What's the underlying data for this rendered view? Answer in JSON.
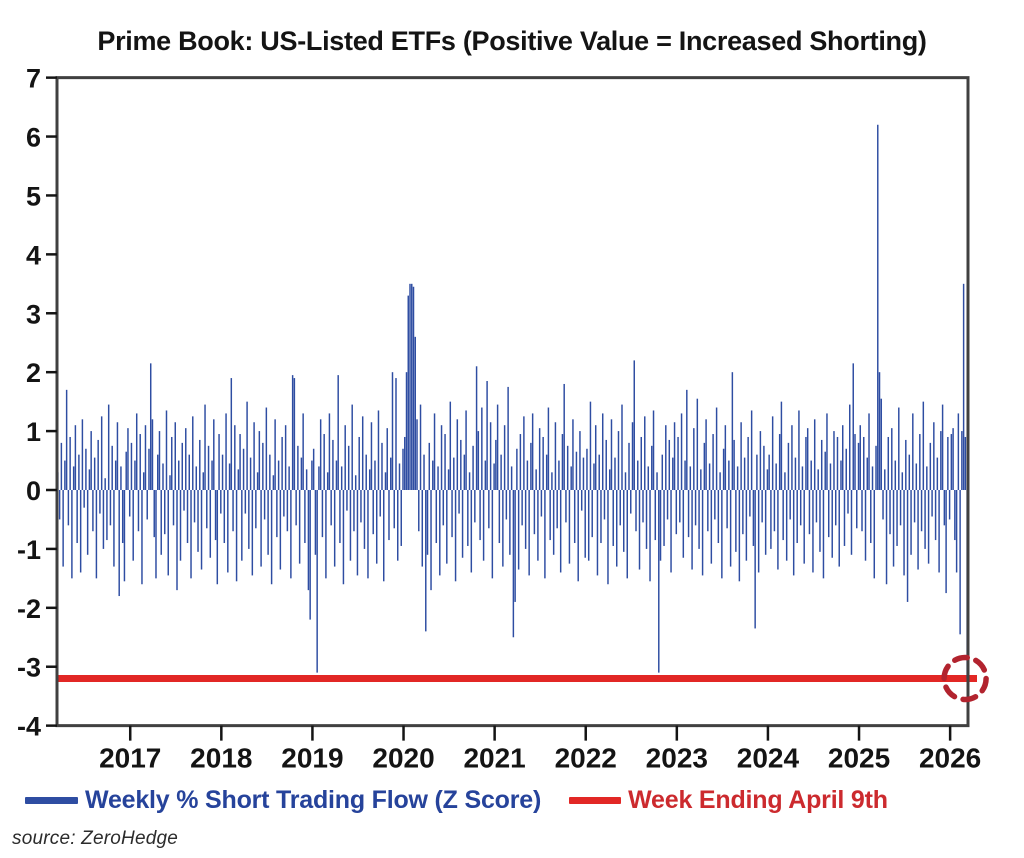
{
  "title": "Prime Book: US-Listed ETFs (Positive Value = Increased Shorting)",
  "source": "source: ZeroHedge",
  "legend": {
    "series1": "Weekly % Short Trading Flow (Z Score)",
    "series2": "Week Ending April 9th"
  },
  "colors": {
    "bars": "#2e4da2",
    "ref_line": "#e22725",
    "circle": "#b2232e",
    "legend_blue_text": "#26439b",
    "legend_red_text": "#cc2a2e",
    "axis": "#404040",
    "tick_text": "#141414",
    "title_text": "#141414"
  },
  "chart_data": {
    "type": "bar",
    "title": "Prime Book: US-Listed ETFs (Positive Value = Increased Shorting)",
    "xlabel": "",
    "ylabel": "",
    "ylim": [
      -4,
      7
    ],
    "grid": false,
    "legend_position": "bottom",
    "y_ticks": [
      7,
      6,
      5,
      4,
      3,
      2,
      1,
      0,
      -1,
      -2,
      -3,
      -4
    ],
    "x_tick_labels": [
      "2017",
      "2018",
      "2019",
      "2020",
      "2021",
      "2022",
      "2023",
      "2024",
      "2025",
      "2026"
    ],
    "x_range_years": [
      2016.2,
      2026.3
    ],
    "frequency": "weekly",
    "annotation": {
      "name": "latest-week-highlight",
      "value": -3.2,
      "at_last_bar": true,
      "shape": "dashed-circle"
    },
    "series": [
      {
        "name": "Weekly % Short Trading Flow (Z Score)",
        "type": "bar",
        "color": "#2e4da2",
        "values": [
          0.3,
          -0.5,
          0.8,
          -1.3,
          0.5,
          1.7,
          -0.6,
          0.9,
          -1.5,
          0.4,
          1.1,
          -0.9,
          0.6,
          -1.4,
          1.2,
          -0.3,
          0.7,
          -1.1,
          0.35,
          1.0,
          -0.7,
          0.55,
          -1.5,
          0.85,
          -0.4,
          1.25,
          -1.0,
          0.2,
          -0.85,
          1.45,
          -0.6,
          0.75,
          -1.3,
          0.5,
          1.15,
          -1.8,
          0.4,
          -0.9,
          -1.55,
          0.65,
          1.05,
          -0.45,
          0.8,
          -1.2,
          0.5,
          1.3,
          -0.7,
          0.95,
          -1.6,
          0.3,
          1.1,
          -0.5,
          0.7,
          2.15,
          1.2,
          -0.8,
          -1.5,
          0.6,
          1.0,
          -1.1,
          0.45,
          -0.75,
          1.35,
          -1.45,
          0.25,
          0.9,
          -0.6,
          1.15,
          -1.7,
          0.5,
          -1.2,
          0.8,
          -0.35,
          1.05,
          -0.9,
          0.6,
          -1.5,
          1.25,
          -0.55,
          0.4,
          -1.05,
          0.85,
          -1.35,
          0.3,
          1.45,
          -0.65,
          0.75,
          -1.15,
          0.5,
          1.2,
          -0.85,
          -1.6,
          0.95,
          -0.4,
          0.6,
          -0.9,
          1.3,
          -1.4,
          0.45,
          1.9,
          -0.7,
          1.1,
          -1.55,
          0.35,
          0.95,
          -1.2,
          0.7,
          -0.4,
          1.5,
          -1.0,
          0.55,
          -1.45,
          1.15,
          -0.65,
          0.3,
          1.0,
          -1.3,
          0.8,
          -0.5,
          1.4,
          -1.1,
          0.6,
          -1.6,
          0.25,
          1.2,
          -0.8,
          0.5,
          -1.35,
          0.9,
          -0.45,
          1.1,
          -0.7,
          0.4,
          -1.5,
          1.95,
          1.9,
          -0.6,
          0.75,
          -1.25,
          0.55,
          1.3,
          -0.9,
          0.35,
          -1.7,
          -2.2,
          0.5,
          0.7,
          -1.1,
          -3.1,
          0.4,
          1.2,
          -0.8,
          0.95,
          -1.5,
          0.3,
          1.3,
          -0.6,
          0.85,
          -1.3,
          0.5,
          1.95,
          -0.9,
          0.4,
          -1.6,
          1.1,
          -0.35,
          0.75,
          -1.2,
          1.45,
          -0.7,
          0.25,
          -1.45,
          0.9,
          -0.55,
          1.25,
          -1.0,
          0.6,
          -1.5,
          0.35,
          1.15,
          -0.75,
          0.5,
          -1.25,
          1.35,
          -0.45,
          0.8,
          -1.55,
          0.3,
          1.05,
          -0.85,
          0.55,
          2.0,
          -0.65,
          1.9,
          -1.2,
          0.45,
          -0.95,
          0.7,
          0.9,
          2.0,
          3.3,
          3.5,
          3.5,
          3.45,
          2.6,
          1.2,
          -0.7,
          1.45,
          -1.3,
          0.6,
          -2.4,
          -1.1,
          0.8,
          -1.7,
          0.5,
          1.3,
          -0.9,
          0.4,
          -1.45,
          1.1,
          -0.6,
          0.95,
          -1.25,
          0.35,
          1.5,
          -0.8,
          0.55,
          -1.55,
          1.2,
          -0.4,
          0.85,
          -1.15,
          0.6,
          1.35,
          -0.95,
          0.3,
          -1.4,
          0.75,
          -0.55,
          2.1,
          1.0,
          -0.85,
          1.4,
          -1.2,
          0.5,
          1.85,
          -0.65,
          1.15,
          -1.5,
          0.45,
          0.85,
          1.45,
          -0.9,
          0.6,
          -1.3,
          1.1,
          -0.5,
          1.75,
          -1.1,
          0.4,
          -2.5,
          -1.9,
          0.7,
          -1.35,
          0.95,
          -0.6,
          1.25,
          -1.0,
          0.5,
          -1.45,
          0.8,
          1.3,
          -0.75,
          0.35,
          -1.2,
          1.05,
          -0.45,
          0.9,
          -1.5,
          0.6,
          1.4,
          -0.85,
          0.3,
          -1.1,
          1.15,
          -0.65,
          0.5,
          -1.4,
          0.95,
          1.8,
          -0.55,
          0.75,
          -1.25,
          0.4,
          1.2,
          -0.9,
          0.65,
          -1.55,
          1.0,
          -0.35,
          0.55,
          -1.15,
          0.7,
          -1.2,
          1.5,
          -0.8,
          0.45,
          1.1,
          -1.45,
          0.6,
          -0.9,
          1.3,
          -0.5,
          0.85,
          -1.6,
          0.35,
          1.2,
          -0.95,
          0.55,
          -1.3,
          1.0,
          -0.6,
          1.45,
          -1.05,
          0.3,
          -1.5,
          0.8,
          -0.4,
          1.15,
          2.2,
          -0.7,
          0.5,
          -1.35,
          0.9,
          -0.55,
          1.25,
          -1.0,
          0.4,
          -1.55,
          0.75,
          1.35,
          -0.85,
          0.3,
          -3.1,
          -1.2,
          0.6,
          -0.95,
          1.1,
          -0.5,
          0.85,
          -1.4,
          0.55,
          1.15,
          -0.75,
          0.9,
          -0.55,
          1.3,
          -1.15,
          0.5,
          1.7,
          -0.8,
          0.4,
          -1.35,
          1.05,
          -0.6,
          1.55,
          -1.0,
          0.35,
          -1.45,
          0.8,
          1.2,
          -0.7,
          0.45,
          -1.25,
          0.95,
          -0.5,
          1.4,
          -0.9,
          0.3,
          -1.5,
          0.7,
          1.1,
          -0.65,
          0.5,
          -1.3,
          2.0,
          0.85,
          -1.05,
          0.4,
          -1.55,
          1.15,
          -0.75,
          0.55,
          -1.2,
          0.9,
          -0.45,
          1.35,
          -0.95,
          -2.35,
          0.6,
          -1.4,
          1.0,
          -0.55,
          0.75,
          -1.1,
          0.35,
          0.6,
          -1.0,
          1.25,
          -0.7,
          0.45,
          -1.35,
          0.95,
          1.5,
          -0.85,
          0.3,
          -1.2,
          0.8,
          -0.5,
          1.1,
          -1.45,
          0.55,
          -0.9,
          1.35,
          -0.6,
          0.4,
          -1.25,
          0.9,
          1.05,
          -0.75,
          0.5,
          -1.4,
          1.2,
          -0.55,
          0.35,
          -1.05,
          0.85,
          -1.5,
          0.65,
          1.3,
          -0.8,
          0.45,
          -1.15,
          1.0,
          -0.6,
          0.9,
          -1.3,
          0.5,
          1.1,
          -0.95,
          0.7,
          -0.4,
          1.45,
          -1.1,
          2.15,
          0.95,
          -0.65,
          0.8,
          1.1,
          -0.7,
          0.9,
          -1.2,
          0.55,
          1.3,
          -0.9,
          0.4,
          -1.5,
          0.75,
          6.2,
          2.0,
          1.55,
          -0.5,
          0.35,
          -1.6,
          0.9,
          -0.75,
          1.05,
          -1.3,
          0.5,
          -0.95,
          1.4,
          -0.6,
          0.3,
          -1.45,
          0.85,
          -1.9,
          0.6,
          -1.1,
          1.3,
          -0.55,
          0.45,
          -1.35,
          0.95,
          -0.7,
          1.5,
          -1.0,
          0.4,
          -1.25,
          0.8,
          -0.45,
          1.15,
          -0.85,
          0.55,
          -1.4,
          1.0,
          1.45,
          -0.6,
          -1.75,
          0.9,
          -0.5,
          0.95,
          1.05,
          -0.85,
          -1.4,
          1.3,
          -2.45,
          1.0,
          3.5,
          0.9,
          -3.2
        ]
      },
      {
        "name": "Week Ending April 9th",
        "type": "hline",
        "value": -3.2,
        "color": "#e22725"
      }
    ]
  }
}
